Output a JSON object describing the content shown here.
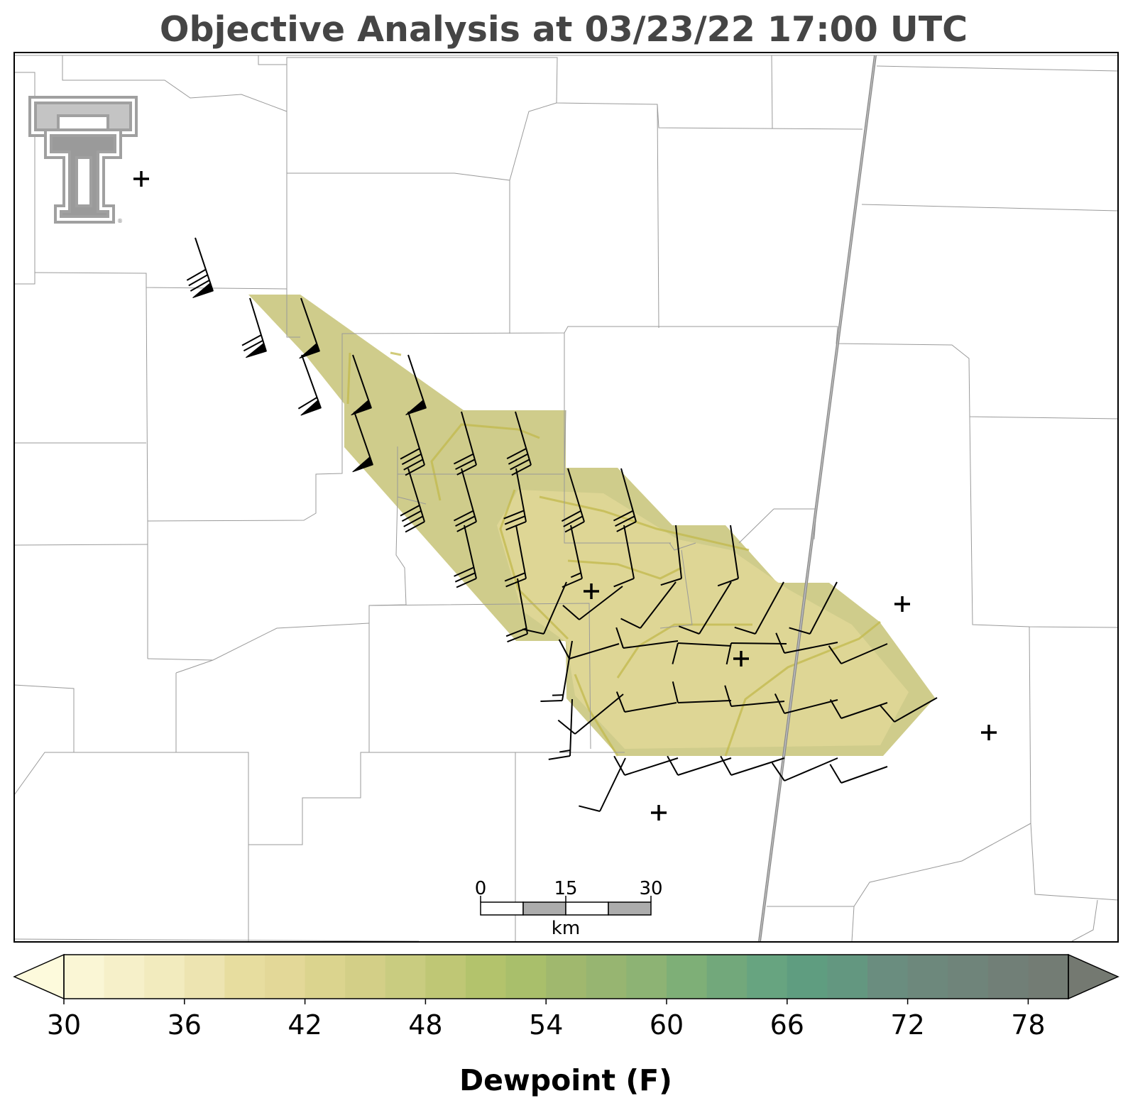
{
  "title": "Objective Analysis at 03/23/22 17:00 UTC",
  "colorbar": {
    "label": "Dewpoint (F)",
    "ticks": [
      "30",
      "36",
      "42",
      "48",
      "54",
      "60",
      "66",
      "72",
      "78"
    ],
    "min": 30,
    "max": 80,
    "step": 2,
    "extend": "both",
    "colors": [
      "#fdfadc",
      "#faf6d5",
      "#f6f0c9",
      "#f2ebbe",
      "#ede4b1",
      "#e7dd9f",
      "#e3d898",
      "#dbd48e",
      "#d3cf87",
      "#c9cc80",
      "#bfc775",
      "#b3c36c",
      "#a9bf6b",
      "#a0b86e",
      "#97b571",
      "#8db374",
      "#7eaf77",
      "#72a87b",
      "#67a480",
      "#5f9d80",
      "#639780",
      "#6a8d7f",
      "#6d887c",
      "#6f847a",
      "#717f77",
      "#737c74",
      "#747971"
    ]
  },
  "scale_bar": {
    "ticks": [
      "0",
      "15",
      "30"
    ],
    "unit": "km"
  },
  "logo": {
    "icon": "texas-tech-double-t-logo",
    "color": "#a0a0a0"
  },
  "analysis_fill_color": "#ccc985",
  "stations_missing": [
    {
      "icon": "plus-marker"
    },
    {
      "icon": "plus-marker"
    },
    {
      "icon": "plus-marker"
    },
    {
      "icon": "plus-marker"
    },
    {
      "icon": "plus-marker"
    },
    {
      "icon": "plus-marker"
    }
  ],
  "highway_color": "#8a8a8a"
}
